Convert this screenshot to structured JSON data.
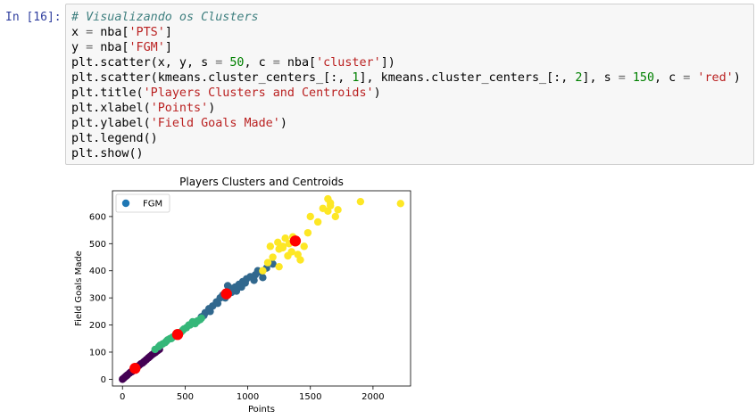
{
  "cell": {
    "prompt": "In [16]:",
    "code_lines": [
      [
        {
          "t": "# Visualizando os Clusters",
          "k": "comment"
        }
      ],
      [
        {
          "t": "x ",
          "k": ""
        },
        {
          "t": "=",
          "k": "op"
        },
        {
          "t": " nba[",
          "k": ""
        },
        {
          "t": "'PTS'",
          "k": "str"
        },
        {
          "t": "]",
          "k": ""
        }
      ],
      [
        {
          "t": "y ",
          "k": ""
        },
        {
          "t": "=",
          "k": "op"
        },
        {
          "t": " nba[",
          "k": ""
        },
        {
          "t": "'FGM'",
          "k": "str"
        },
        {
          "t": "]",
          "k": ""
        }
      ],
      [
        {
          "t": "plt.scatter(x, y, s ",
          "k": ""
        },
        {
          "t": "=",
          "k": "op"
        },
        {
          "t": " ",
          "k": ""
        },
        {
          "t": "50",
          "k": "num"
        },
        {
          "t": ", c ",
          "k": ""
        },
        {
          "t": "=",
          "k": "op"
        },
        {
          "t": " nba[",
          "k": ""
        },
        {
          "t": "'cluster'",
          "k": "str"
        },
        {
          "t": "])",
          "k": ""
        }
      ],
      [
        {
          "t": "plt.scatter(kmeans.cluster_centers_[:, ",
          "k": ""
        },
        {
          "t": "1",
          "k": "num"
        },
        {
          "t": "], kmeans.cluster_centers_[:, ",
          "k": ""
        },
        {
          "t": "2",
          "k": "num"
        },
        {
          "t": "], s ",
          "k": ""
        },
        {
          "t": "=",
          "k": "op"
        },
        {
          "t": " ",
          "k": ""
        },
        {
          "t": "150",
          "k": "num"
        },
        {
          "t": ", c ",
          "k": ""
        },
        {
          "t": "=",
          "k": "op"
        },
        {
          "t": " ",
          "k": ""
        },
        {
          "t": "'red'",
          "k": "str"
        },
        {
          "t": ")",
          "k": ""
        }
      ],
      [
        {
          "t": "plt.title(",
          "k": ""
        },
        {
          "t": "'Players Clusters and Centroids'",
          "k": "str"
        },
        {
          "t": ")",
          "k": ""
        }
      ],
      [
        {
          "t": "plt.xlabel(",
          "k": ""
        },
        {
          "t": "'Points'",
          "k": "str"
        },
        {
          "t": ")",
          "k": ""
        }
      ],
      [
        {
          "t": "plt.ylabel(",
          "k": ""
        },
        {
          "t": "'Field Goals Made'",
          "k": "str"
        },
        {
          "t": ")",
          "k": ""
        }
      ],
      [
        {
          "t": "plt.legend()",
          "k": ""
        }
      ],
      [
        {
          "t": "plt.show()",
          "k": ""
        }
      ]
    ]
  },
  "colors": {
    "cluster_0": "#440154",
    "cluster_1": "#31688e",
    "cluster_2": "#35b779",
    "cluster_3": "#fde725",
    "centroid": "#ff0000",
    "legend_marker": "#1f77b4"
  },
  "chart_data": {
    "type": "scatter",
    "title": "Players Clusters and Centroids",
    "xlabel": "Points",
    "ylabel": "Field Goals Made",
    "xlim": [
      -80,
      2300
    ],
    "ylim": [
      -25,
      695
    ],
    "xticks": [
      0,
      500,
      1000,
      1500,
      2000
    ],
    "yticks": [
      0,
      100,
      200,
      300,
      400,
      500,
      600
    ],
    "legend": {
      "labels": [
        "FGM"
      ],
      "placement": "upper-left"
    },
    "grid": false,
    "series": [
      {
        "name": "FGM",
        "cluster": 0,
        "x": [
          0,
          10,
          20,
          30,
          40,
          55,
          65,
          80,
          90,
          100,
          115,
          130,
          145,
          160,
          175,
          190,
          205,
          220,
          235,
          250,
          265,
          280,
          295,
          75,
          120,
          170,
          210,
          260
        ],
        "y": [
          0,
          4,
          8,
          12,
          16,
          22,
          26,
          30,
          34,
          40,
          44,
          50,
          56,
          60,
          66,
          72,
          78,
          84,
          90,
          95,
          100,
          105,
          110,
          28,
          46,
          64,
          80,
          98
        ]
      },
      {
        "name": "FGM",
        "cluster": 1,
        "x": [
          600,
          630,
          660,
          690,
          720,
          750,
          780,
          800,
          830,
          860,
          880,
          900,
          930,
          960,
          990,
          1020,
          1060,
          1100,
          1150,
          1200,
          760,
          840,
          910,
          980,
          1050,
          700,
          1120,
          820,
          650,
          1080,
          950,
          870
        ],
        "y": [
          215,
          230,
          245,
          260,
          270,
          285,
          300,
          310,
          315,
          330,
          335,
          340,
          350,
          360,
          370,
          378,
          385,
          395,
          410,
          425,
          280,
          345,
          325,
          355,
          365,
          250,
          375,
          300,
          235,
          400,
          340,
          320
        ]
      },
      {
        "name": "FGM",
        "cluster": 2,
        "x": [
          260,
          290,
          320,
          350,
          380,
          400,
          420,
          450,
          480,
          510,
          540,
          570,
          600,
          630,
          300,
          340,
          390,
          440,
          490,
          530,
          580,
          620,
          360,
          470,
          560
        ],
        "y": [
          110,
          120,
          130,
          140,
          150,
          155,
          160,
          170,
          180,
          190,
          200,
          210,
          215,
          225,
          125,
          135,
          150,
          165,
          185,
          200,
          205,
          220,
          145,
          175,
          212
        ]
      },
      {
        "name": "FGM",
        "cluster": 3,
        "x": [
          1120,
          1160,
          1200,
          1250,
          1280,
          1300,
          1330,
          1350,
          1380,
          1400,
          1420,
          1450,
          1480,
          1500,
          1560,
          1600,
          1640,
          1660,
          1700,
          1720,
          1900,
          2220,
          1250,
          1180,
          1320,
          1240,
          1360,
          1280,
          1640,
          1660
        ],
        "y": [
          400,
          430,
          450,
          480,
          490,
          520,
          500,
          470,
          510,
          460,
          440,
          490,
          540,
          600,
          580,
          630,
          620,
          640,
          600,
          625,
          655,
          648,
          415,
          490,
          455,
          505,
          525,
          485,
          665,
          650
        ]
      },
      {
        "name": "centroids",
        "cluster": "centroid",
        "x": [
          100,
          440,
          830,
          1380
        ],
        "y": [
          40,
          165,
          315,
          510
        ]
      }
    ]
  }
}
